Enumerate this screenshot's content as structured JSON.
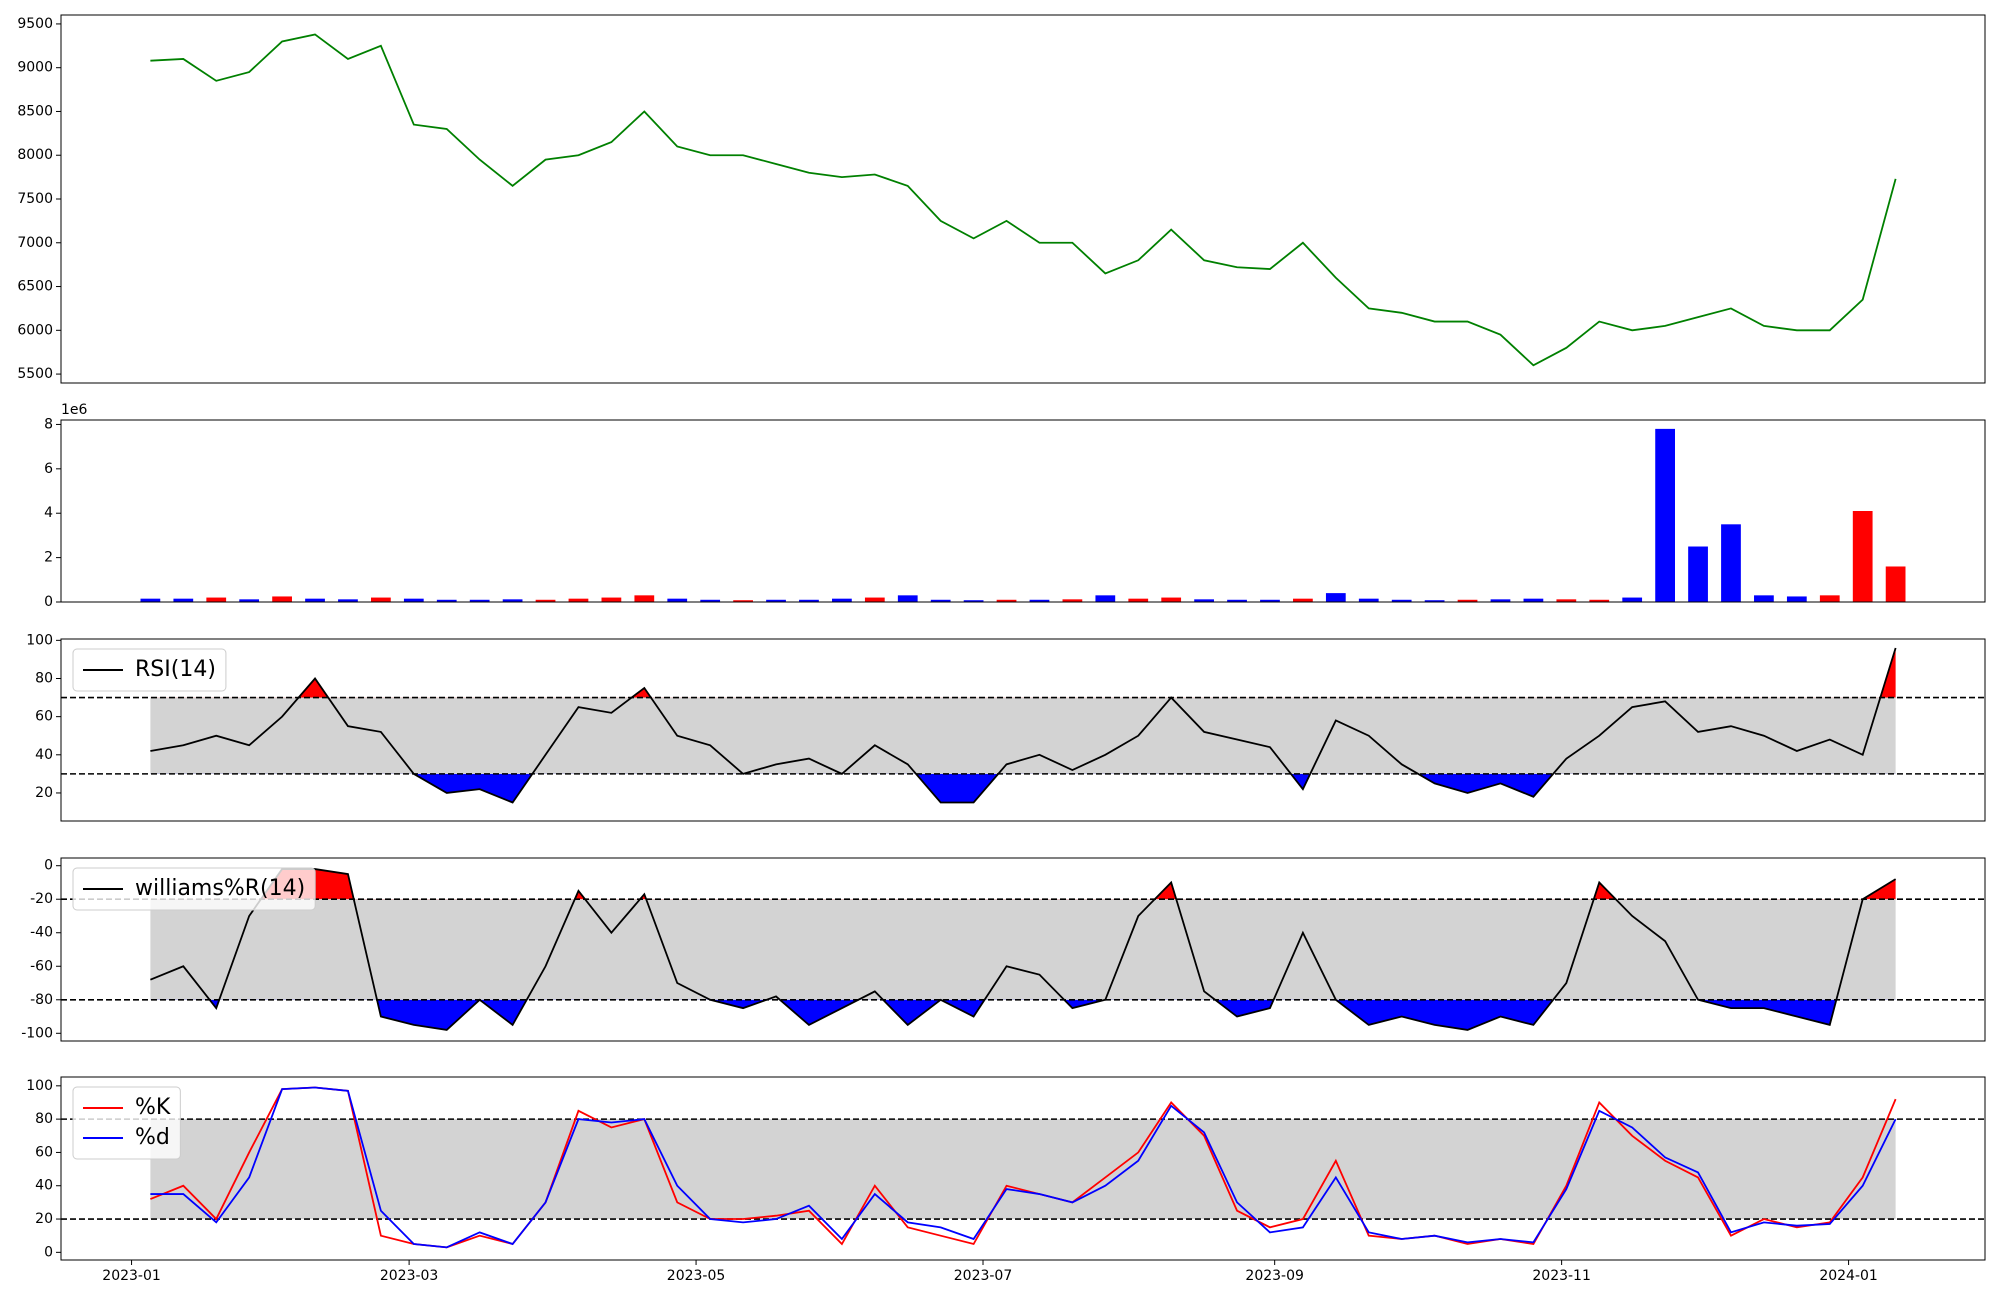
{
  "chart_data": [
    {
      "type": "line",
      "color": "#008000",
      "x": [
        "2023-01-05",
        "2023-01-12",
        "2023-01-19",
        "2023-01-26",
        "2023-02-02",
        "2023-02-09",
        "2023-02-16",
        "2023-02-23",
        "2023-03-02",
        "2023-03-09",
        "2023-03-16",
        "2023-03-23",
        "2023-03-30",
        "2023-04-06",
        "2023-04-13",
        "2023-04-20",
        "2023-04-27",
        "2023-05-04",
        "2023-05-11",
        "2023-05-18",
        "2023-05-25",
        "2023-06-01",
        "2023-06-08",
        "2023-06-15",
        "2023-06-22",
        "2023-06-29",
        "2023-07-06",
        "2023-07-13",
        "2023-07-20",
        "2023-07-27",
        "2023-08-03",
        "2023-08-10",
        "2023-08-17",
        "2023-08-24",
        "2023-08-31",
        "2023-09-07",
        "2023-09-14",
        "2023-09-21",
        "2023-09-28",
        "2023-10-05",
        "2023-10-12",
        "2023-10-19",
        "2023-10-26",
        "2023-11-02",
        "2023-11-09",
        "2023-11-16",
        "2023-11-23",
        "2023-11-30",
        "2023-12-07",
        "2023-12-14",
        "2023-12-21",
        "2023-12-28",
        "2024-01-04",
        "2024-01-11"
      ],
      "values": [
        9080,
        9100,
        8850,
        8950,
        9300,
        9380,
        9100,
        9250,
        8350,
        8300,
        7950,
        7650,
        7950,
        8000,
        8150,
        8500,
        8100,
        8000,
        8000,
        7900,
        7800,
        7750,
        7780,
        7650,
        7250,
        7050,
        7250,
        7000,
        7000,
        6650,
        6800,
        7150,
        6800,
        6720,
        6700,
        7000,
        6600,
        6250,
        6200,
        6100,
        6100,
        5950,
        5600,
        5800,
        6100,
        6000,
        6050,
        6150,
        6250,
        6050,
        6000,
        6000,
        6350,
        7730
      ],
      "xlim": [
        "2022-12-17",
        "2024-01-30"
      ],
      "ylim": [
        5398,
        9602
      ],
      "yticks": [
        5500,
        6000,
        6500,
        7000,
        7500,
        8000,
        8500,
        9000,
        9500
      ]
    },
    {
      "type": "bar",
      "offset_label": "1e6",
      "x": [
        "2023-01-05",
        "2023-01-12",
        "2023-01-19",
        "2023-01-26",
        "2023-02-02",
        "2023-02-09",
        "2023-02-16",
        "2023-02-23",
        "2023-03-02",
        "2023-03-09",
        "2023-03-16",
        "2023-03-23",
        "2023-03-30",
        "2023-04-06",
        "2023-04-13",
        "2023-04-20",
        "2023-04-27",
        "2023-05-04",
        "2023-05-11",
        "2023-05-18",
        "2023-05-25",
        "2023-06-01",
        "2023-06-08",
        "2023-06-15",
        "2023-06-22",
        "2023-06-29",
        "2023-07-06",
        "2023-07-13",
        "2023-07-20",
        "2023-07-27",
        "2023-08-03",
        "2023-08-10",
        "2023-08-17",
        "2023-08-24",
        "2023-08-31",
        "2023-09-07",
        "2023-09-14",
        "2023-09-21",
        "2023-09-28",
        "2023-10-05",
        "2023-10-12",
        "2023-10-19",
        "2023-10-26",
        "2023-11-02",
        "2023-11-09",
        "2023-11-16",
        "2023-11-23",
        "2023-11-30",
        "2023-12-07",
        "2023-12-14",
        "2023-12-21",
        "2023-12-28",
        "2024-01-04",
        "2024-01-11"
      ],
      "values": [
        0.15,
        0.15,
        0.2,
        0.12,
        0.25,
        0.15,
        0.12,
        0.2,
        0.15,
        0.1,
        0.1,
        0.12,
        0.1,
        0.15,
        0.2,
        0.3,
        0.15,
        0.1,
        0.08,
        0.1,
        0.1,
        0.15,
        0.2,
        0.3,
        0.1,
        0.08,
        0.1,
        0.1,
        0.12,
        0.3,
        0.15,
        0.2,
        0.12,
        0.1,
        0.1,
        0.15,
        0.4,
        0.15,
        0.1,
        0.08,
        0.1,
        0.12,
        0.15,
        0.12,
        0.1,
        0.2,
        7.8,
        2.5,
        3.5,
        0.3,
        0.25,
        0.3,
        4.1,
        1.6
      ],
      "bar_colors": [
        "#0000ff",
        "#0000ff",
        "#ff0000",
        "#0000ff",
        "#ff0000",
        "#0000ff",
        "#0000ff",
        "#ff0000",
        "#0000ff",
        "#0000ff",
        "#0000ff",
        "#0000ff",
        "#ff0000",
        "#ff0000",
        "#ff0000",
        "#ff0000",
        "#0000ff",
        "#0000ff",
        "#ff0000",
        "#0000ff",
        "#0000ff",
        "#0000ff",
        "#ff0000",
        "#0000ff",
        "#0000ff",
        "#0000ff",
        "#ff0000",
        "#0000ff",
        "#ff0000",
        "#0000ff",
        "#ff0000",
        "#ff0000",
        "#0000ff",
        "#0000ff",
        "#0000ff",
        "#ff0000",
        "#0000ff",
        "#0000ff",
        "#0000ff",
        "#0000ff",
        "#ff0000",
        "#0000ff",
        "#0000ff",
        "#ff0000",
        "#ff0000",
        "#0000ff",
        "#0000ff",
        "#0000ff",
        "#0000ff",
        "#0000ff",
        "#0000ff",
        "#ff0000",
        "#ff0000",
        "#ff0000"
      ],
      "xlim": [
        "2022-12-17",
        "2024-01-30"
      ],
      "ylim": [
        0,
        8.2
      ],
      "yticks": [
        0,
        2,
        4,
        6,
        8
      ]
    },
    {
      "type": "line",
      "legend": "upper left",
      "levels": [
        30,
        70
      ],
      "band_color": "#d3d3d3",
      "fill_above": "#ff0000",
      "fill_below": "#0000ff",
      "x": [
        "2023-01-05",
        "2023-01-12",
        "2023-01-19",
        "2023-01-26",
        "2023-02-02",
        "2023-02-09",
        "2023-02-16",
        "2023-02-23",
        "2023-03-02",
        "2023-03-09",
        "2023-03-16",
        "2023-03-23",
        "2023-03-30",
        "2023-04-06",
        "2023-04-13",
        "2023-04-20",
        "2023-04-27",
        "2023-05-04",
        "2023-05-11",
        "2023-05-18",
        "2023-05-25",
        "2023-06-01",
        "2023-06-08",
        "2023-06-15",
        "2023-06-22",
        "2023-06-29",
        "2023-07-06",
        "2023-07-13",
        "2023-07-20",
        "2023-07-27",
        "2023-08-03",
        "2023-08-10",
        "2023-08-17",
        "2023-08-24",
        "2023-08-31",
        "2023-09-07",
        "2023-09-14",
        "2023-09-21",
        "2023-09-28",
        "2023-10-05",
        "2023-10-12",
        "2023-10-19",
        "2023-10-26",
        "2023-11-02",
        "2023-11-09",
        "2023-11-16",
        "2023-11-23",
        "2023-11-30",
        "2023-12-07",
        "2023-12-14",
        "2023-12-21",
        "2023-12-28",
        "2024-01-04",
        "2024-01-11"
      ],
      "series": [
        {
          "name": "RSI(14)",
          "color": "#000000",
          "values": [
            42,
            45,
            50,
            45,
            60,
            80,
            55,
            52,
            30,
            20,
            22,
            15,
            40,
            65,
            62,
            75,
            50,
            45,
            30,
            35,
            38,
            30,
            45,
            35,
            15,
            15,
            35,
            40,
            32,
            40,
            50,
            70,
            52,
            48,
            44,
            22,
            58,
            50,
            35,
            25,
            20,
            25,
            18,
            38,
            50,
            65,
            68,
            52,
            55,
            50,
            42,
            48,
            40,
            96
          ]
        }
      ],
      "xlim": [
        "2022-12-17",
        "2024-01-30"
      ],
      "ylim": [
        5.3,
        100.7
      ],
      "yticks": [
        20,
        40,
        60,
        80,
        100
      ]
    },
    {
      "type": "line",
      "legend": "upper left",
      "levels": [
        -80,
        -20
      ],
      "band_color": "#d3d3d3",
      "fill_above": "#ff0000",
      "fill_below": "#0000ff",
      "x": [
        "2023-01-05",
        "2023-01-12",
        "2023-01-19",
        "2023-01-26",
        "2023-02-02",
        "2023-02-09",
        "2023-02-16",
        "2023-02-23",
        "2023-03-02",
        "2023-03-09",
        "2023-03-16",
        "2023-03-23",
        "2023-03-30",
        "2023-04-06",
        "2023-04-13",
        "2023-04-20",
        "2023-04-27",
        "2023-05-04",
        "2023-05-11",
        "2023-05-18",
        "2023-05-25",
        "2023-06-01",
        "2023-06-08",
        "2023-06-15",
        "2023-06-22",
        "2023-06-29",
        "2023-07-06",
        "2023-07-13",
        "2023-07-20",
        "2023-07-27",
        "2023-08-03",
        "2023-08-10",
        "2023-08-17",
        "2023-08-24",
        "2023-08-31",
        "2023-09-07",
        "2023-09-14",
        "2023-09-21",
        "2023-09-28",
        "2023-10-05",
        "2023-10-12",
        "2023-10-19",
        "2023-10-26",
        "2023-11-02",
        "2023-11-09",
        "2023-11-16",
        "2023-11-23",
        "2023-11-30",
        "2023-12-07",
        "2023-12-14",
        "2023-12-21",
        "2023-12-28",
        "2024-01-04",
        "2024-01-11"
      ],
      "series": [
        {
          "name": "williams%R(14)",
          "color": "#000000",
          "values": [
            -68,
            -60,
            -85,
            -30,
            -2,
            -2,
            -5,
            -90,
            -95,
            -98,
            -80,
            -95,
            -60,
            -15,
            -40,
            -17,
            -70,
            -80,
            -85,
            -78,
            -95,
            -85,
            -75,
            -95,
            -80,
            -90,
            -60,
            -65,
            -85,
            -80,
            -30,
            -10,
            -75,
            -90,
            -85,
            -40,
            -80,
            -95,
            -90,
            -95,
            -98,
            -90,
            -95,
            -70,
            -10,
            -30,
            -45,
            -80,
            -85,
            -85,
            -90,
            -95,
            -20,
            -8
          ]
        }
      ],
      "xlim": [
        "2022-12-17",
        "2024-01-30"
      ],
      "ylim": [
        -104.6,
        4.6
      ],
      "yticks": [
        -100,
        -80,
        -60,
        -40,
        -20,
        0
      ]
    },
    {
      "type": "line",
      "legend": "upper left",
      "levels": [
        20,
        80
      ],
      "band_color": "#d3d3d3",
      "x": [
        "2023-01-05",
        "2023-01-12",
        "2023-01-19",
        "2023-01-26",
        "2023-02-02",
        "2023-02-09",
        "2023-02-16",
        "2023-02-23",
        "2023-03-02",
        "2023-03-09",
        "2023-03-16",
        "2023-03-23",
        "2023-03-30",
        "2023-04-06",
        "2023-04-13",
        "2023-04-20",
        "2023-04-27",
        "2023-05-04",
        "2023-05-11",
        "2023-05-18",
        "2023-05-25",
        "2023-06-01",
        "2023-06-08",
        "2023-06-15",
        "2023-06-22",
        "2023-06-29",
        "2023-07-06",
        "2023-07-13",
        "2023-07-20",
        "2023-07-27",
        "2023-08-03",
        "2023-08-10",
        "2023-08-17",
        "2023-08-24",
        "2023-08-31",
        "2023-09-07",
        "2023-09-14",
        "2023-09-21",
        "2023-09-28",
        "2023-10-05",
        "2023-10-12",
        "2023-10-19",
        "2023-10-26",
        "2023-11-02",
        "2023-11-09",
        "2023-11-16",
        "2023-11-23",
        "2023-11-30",
        "2023-12-07",
        "2023-12-14",
        "2023-12-21",
        "2023-12-28",
        "2024-01-04",
        "2024-01-11"
      ],
      "series": [
        {
          "name": "%K",
          "color": "#ff0000",
          "values": [
            32,
            40,
            20,
            60,
            98,
            99,
            97,
            10,
            5,
            3,
            10,
            5,
            30,
            85,
            75,
            80,
            30,
            20,
            20,
            22,
            25,
            5,
            40,
            15,
            10,
            5,
            40,
            35,
            30,
            45,
            60,
            90,
            70,
            25,
            15,
            20,
            55,
            10,
            8,
            10,
            5,
            8,
            5,
            40,
            90,
            70,
            55,
            45,
            10,
            20,
            15,
            18,
            45,
            92
          ]
        },
        {
          "name": "%d",
          "color": "#0000ff",
          "values": [
            35,
            35,
            18,
            45,
            98,
            99,
            97,
            25,
            5,
            3,
            12,
            5,
            30,
            80,
            78,
            80,
            40,
            20,
            18,
            20,
            28,
            8,
            35,
            18,
            15,
            8,
            38,
            35,
            30,
            40,
            55,
            88,
            72,
            30,
            12,
            15,
            45,
            12,
            8,
            10,
            6,
            8,
            6,
            38,
            85,
            75,
            57,
            48,
            12,
            18,
            16,
            17,
            40,
            80
          ]
        }
      ],
      "xlim": [
        "2022-12-17",
        "2024-01-30"
      ],
      "ylim": [
        -4.6,
        105.3
      ],
      "yticks": [
        0,
        20,
        40,
        60,
        80,
        100
      ],
      "xticks": [
        "2023-01",
        "2023-03",
        "2023-05",
        "2023-07",
        "2023-09",
        "2023-11",
        "2024-01"
      ]
    }
  ]
}
